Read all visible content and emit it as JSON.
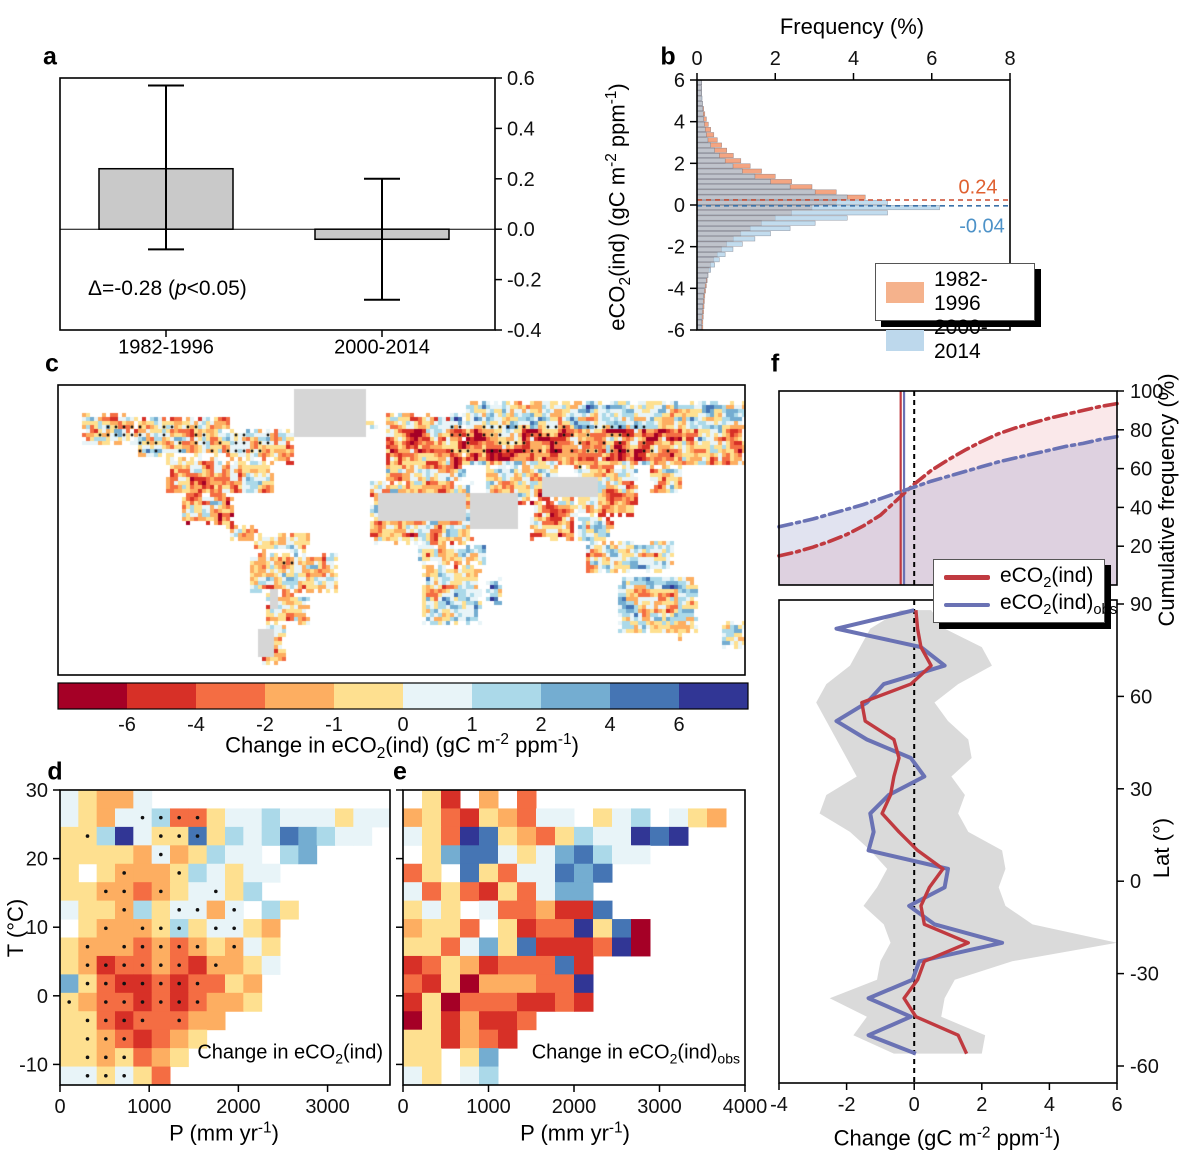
{
  "figure": {
    "background": "#ffffff",
    "panel_letters": [
      "a",
      "b",
      "c",
      "d",
      "e",
      "f"
    ]
  },
  "palette": [
    "#a50026",
    "#d73027",
    "#f46d43",
    "#fdae61",
    "#fee090",
    "#e8f4f8",
    "#abd9e9",
    "#74add1",
    "#4575b4",
    "#313695"
  ],
  "colors": {
    "bar_gray": "#c9c9c9",
    "hist_orange": "#f4a582",
    "hist_blue": "#aacfe8",
    "legend_orange": "#f5b28c",
    "legend_blue": "#bdd8ec",
    "line_red": "#c03a40",
    "line_blue": "#6a72b4",
    "mean_text_orange": "#e06030",
    "mean_text_blue": "#4d92c8",
    "band_gray": "#dadada",
    "nodata_gray": "#d6d6d6"
  },
  "chart_data": [
    {
      "id": "a",
      "type": "bar",
      "categories": [
        "1982-1996",
        "2000-2014"
      ],
      "values": [
        0.24,
        -0.04
      ],
      "error_low": [
        -0.08,
        -0.28
      ],
      "error_high": [
        0.57,
        0.2
      ],
      "ylabel": "eCO_{2}(ind) (gC m^{-2} ppm^{-1})",
      "ylim": [
        -0.4,
        0.6
      ],
      "yticks": [
        "0.6",
        "0.4",
        "0.2",
        "0.0",
        "-0.2",
        "-0.4"
      ],
      "annotation": "Δ=-0.28 (*p*<0.05)"
    },
    {
      "id": "b",
      "type": "histogram-horizontal",
      "xlabel": "Frequency (%)",
      "xlim": [
        0,
        8
      ],
      "xticks": [
        "0",
        "2",
        "4",
        "6",
        "8"
      ],
      "ylim": [
        -6,
        6
      ],
      "yticks": [
        "6",
        "4",
        "2",
        "0",
        "-2",
        "-4",
        "-6"
      ],
      "bin_start": -6,
      "bin_width": 0.25,
      "series": [
        {
          "name": "1982-1996",
          "mean": 0.24,
          "mean_label": "0.24",
          "values": [
            0.15,
            0.15,
            0.16,
            0.17,
            0.18,
            0.19,
            0.2,
            0.22,
            0.24,
            0.26,
            0.28,
            0.31,
            0.35,
            0.43,
            0.52,
            0.63,
            0.76,
            0.93,
            1.12,
            1.36,
            1.65,
            2.0,
            2.42,
            2.94,
            3.56,
            4.3,
            3.56,
            2.94,
            2.42,
            2.0,
            1.65,
            1.36,
            1.12,
            0.93,
            0.76,
            0.63,
            0.52,
            0.43,
            0.35,
            0.29,
            0.24,
            0.2,
            0.17,
            0.14,
            0.12,
            0.12,
            0.12,
            0.12
          ]
        },
        {
          "name": "2000-2014",
          "mean": -0.04,
          "mean_label": "-0.04",
          "values": [
            0.12,
            0.12,
            0.13,
            0.14,
            0.15,
            0.16,
            0.17,
            0.19,
            0.21,
            0.24,
            0.28,
            0.35,
            0.45,
            0.57,
            0.72,
            0.92,
            1.16,
            1.48,
            1.88,
            2.38,
            3.02,
            3.84,
            4.87,
            6.2,
            4.87,
            3.84,
            3.02,
            2.38,
            1.88,
            1.48,
            1.16,
            0.92,
            0.72,
            0.57,
            0.45,
            0.35,
            0.28,
            0.24,
            0.21,
            0.19,
            0.17,
            0.16,
            0.15,
            0.14,
            0.13,
            0.12,
            0.12,
            0.12
          ]
        }
      ]
    },
    {
      "id": "c",
      "type": "heatmap",
      "title": "Change in eCO_{2}(ind) (gC m^{-2} ppm^{-1})",
      "colorbar_ticks": [
        "-6",
        "-4",
        "-2",
        "-1",
        "0",
        "1",
        "2",
        "4",
        "6"
      ]
    },
    {
      "id": "d",
      "type": "heatmap",
      "xlabel": "P (mm yr^{-1})",
      "ylabel": "T (°C)",
      "xlim": [
        0,
        3700
      ],
      "xticks": [
        "0",
        "1000",
        "2000",
        "3000"
      ],
      "ylim": [
        -13,
        30
      ],
      "yticks": [
        "30",
        "20",
        "10",
        "0",
        "-10"
      ],
      "annotation": "Change in eCO_{2}(ind)",
      "grid": [
        "54335.............",
        "543556224556555455",
        "44695448465687655.",
        "44443534655.67....",
        "4.4333465455......",
        "44332345546.......",
        "5443645535.64.....",
        ".43334645543......",
        "433323234354......",
        "431223213345......",
        "74211212243.......",
        "43221212334.......",
        "442122233.........",
        "44321234..........",
        "4434234...........",
        "554542............"
      ],
      "dots": [
        "..................",
        "....****..........",
        ".*...***..........",
        ".....*............",
        "...*..*...........",
        "..**.*..*.........",
        "...*..**.*........",
        "..*.***.**........",
        ".*.*****.*........",
        ".******.*.........",
        ".*******..........",
        "*.******..........",
        ".****.*...........",
        ".***..............",
        ".***..............",
        ".***.............."
      ]
    },
    {
      "id": "e",
      "type": "heatmap",
      "xlabel": "P (mm yr^{-1})",
      "xlim": [
        0,
        4000
      ],
      "xticks": [
        "0",
        "1000",
        "2000",
        "3000",
        "4000"
      ],
      "ylim": [
        -13,
        30
      ],
      "annotation": "Change in eCO_{2}(ind)_{obs}",
      "grid": [
        ".41.3.2...........",
        "342143255.456.543.",
        "542984324655989...",
        ".478854578655.....",
        "24.84255878.......",
        "5242142577........",
        "454.5223118.......",
        "3442.41229480.....",
        "4425748111290.....",
        "1243122281........",
        "2140333229........",
        "1402221121........",
        "0413112...........",
        "441321............",
        "44.47.............",
        "54.56............."
      ]
    },
    {
      "id": "f_top",
      "type": "line",
      "ylabel": "Cumulative frequency (%)",
      "xlim": [
        -4,
        6
      ],
      "ylim": [
        0,
        100
      ],
      "yticks": [
        "100",
        "80",
        "60",
        "40",
        "20"
      ],
      "x": [
        -4,
        -3.5,
        -3,
        -2.5,
        -2,
        -1.5,
        -1,
        -0.5,
        0,
        0.5,
        1,
        1.5,
        2,
        2.5,
        3,
        3.5,
        4,
        4.5,
        5,
        5.5,
        6
      ],
      "series": [
        {
          "name": "eCO_{2}(ind)",
          "vline": -0.4,
          "y": [
            15,
            17,
            19.5,
            22.5,
            26,
            30.5,
            36,
            44,
            52,
            59,
            64.5,
            69.5,
            74,
            78,
            81,
            83.5,
            86,
            88,
            90,
            92,
            93.5
          ]
        },
        {
          "name": "eCO_{2}(ind)_{obs}",
          "vline": -0.3,
          "y": [
            30,
            32,
            34,
            36.5,
            39,
            41.5,
            44.5,
            47.5,
            50.5,
            53.5,
            56,
            58.5,
            61,
            63.5,
            65.5,
            67.5,
            69.5,
            71.5,
            73,
            75,
            76.5
          ]
        }
      ],
      "zero_line": 0
    },
    {
      "id": "f_bottom",
      "type": "line",
      "xlabel": "Change (gC m^{-2} ppm^{-1})",
      "ylabel": "Lat (°)",
      "xlim": [
        -4,
        6
      ],
      "xticks": [
        "-4",
        "-2",
        "0",
        "2",
        "4",
        "6"
      ],
      "ylim": [
        -65,
        90
      ],
      "yticks": [
        "90",
        "60",
        "30",
        "0",
        "-30",
        "-60"
      ],
      "lats": [
        88,
        82,
        76,
        70,
        64,
        58,
        52,
        46,
        40,
        34,
        28,
        22,
        16,
        10,
        4,
        -2,
        -8,
        -14,
        -20,
        -26,
        -32,
        -38,
        -44,
        -50,
        -56
      ],
      "series": [
        {
          "name": "eCO_{2}(ind)",
          "x": [
            0.05,
            0.1,
            0.2,
            0.5,
            -0.1,
            -1.55,
            -1.45,
            -0.6,
            -0.45,
            -0.6,
            -0.7,
            -0.95,
            -0.45,
            0.1,
            0.85,
            0.45,
            0.2,
            0.3,
            1.6,
            0.3,
            0.1,
            -0.3,
            0.05,
            1.3,
            1.55
          ]
        },
        {
          "name": "eCO_{2}(ind)_{obs}",
          "x": [
            0.0,
            -2.3,
            0.2,
            0.9,
            -0.9,
            -1.4,
            -2.3,
            -1.4,
            -0.1,
            0.3,
            -0.75,
            -1.3,
            -1.2,
            -1.35,
            1.0,
            0.9,
            -0.15,
            0.6,
            2.6,
            0.15,
            -0.05,
            -1.35,
            -0.1,
            -1.35,
            0.05
          ]
        }
      ],
      "band_low": [
        -0.4,
        -1.3,
        -1.6,
        -1.9,
        -2.6,
        -2.9,
        -2.6,
        -2.3,
        -2.0,
        -1.7,
        -2.6,
        -2.8,
        -1.9,
        -1.3,
        -0.8,
        -1.1,
        -1.5,
        -0.9,
        -0.7,
        -1.0,
        -1.1,
        -2.5,
        -1.4,
        -1.8,
        -0.6
      ],
      "band_high": [
        0.5,
        0.9,
        2.0,
        2.3,
        1.3,
        0.6,
        1.0,
        1.6,
        1.7,
        1.1,
        1.5,
        1.3,
        1.6,
        2.6,
        2.7,
        2.5,
        2.7,
        3.5,
        6.0,
        2.9,
        1.2,
        0.9,
        0.8,
        2.1,
        2.0
      ],
      "zero_line": 0
    }
  ]
}
